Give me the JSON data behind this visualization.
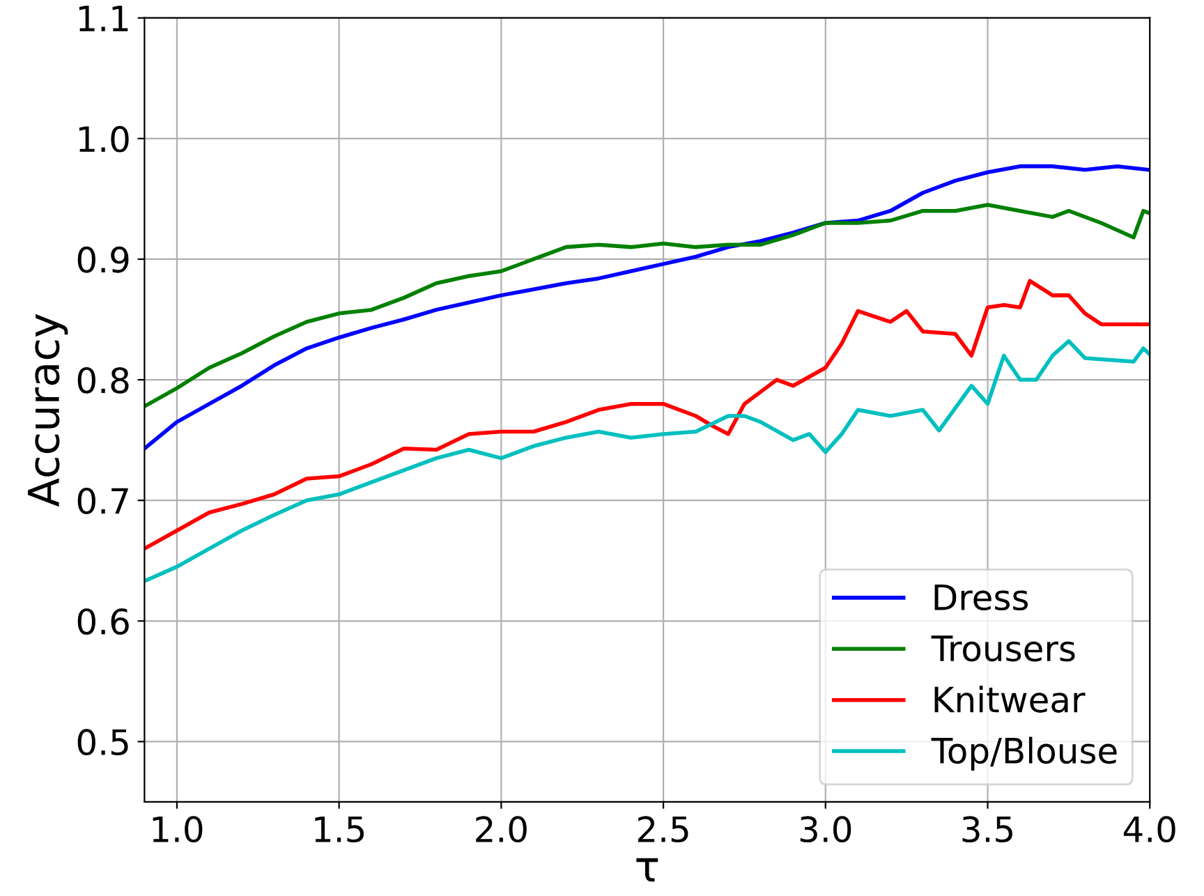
{
  "chart_data": {
    "type": "line",
    "xlabel": "τ",
    "ylabel": "Accuracy",
    "xlim": [
      0.9,
      4.0
    ],
    "ylim": [
      0.45,
      1.1
    ],
    "xticks": [
      {
        "value": 1.0,
        "label": "1.0"
      },
      {
        "value": 1.5,
        "label": "1.5"
      },
      {
        "value": 2.0,
        "label": "2.0"
      },
      {
        "value": 2.5,
        "label": "2.5"
      },
      {
        "value": 3.0,
        "label": "3.0"
      },
      {
        "value": 3.5,
        "label": "3.5"
      },
      {
        "value": 4.0,
        "label": "4.0"
      }
    ],
    "yticks": [
      0.5,
      0.6,
      0.7,
      0.8,
      0.9,
      {
        "value": 1.0,
        "label": "1.0"
      },
      1.1
    ],
    "grid": true,
    "legend": "bottom right",
    "marker": "none",
    "line_style": "solid",
    "series": [
      {
        "name": "Dress",
        "color": "#0000ff",
        "x": [
          0.9,
          1.0,
          1.1,
          1.2,
          1.3,
          1.4,
          1.5,
          1.6,
          1.7,
          1.8,
          1.9,
          2.0,
          2.1,
          2.2,
          2.3,
          2.4,
          2.5,
          2.6,
          2.7,
          2.8,
          2.9,
          3.0,
          3.1,
          3.2,
          3.3,
          3.4,
          3.5,
          3.6,
          3.7,
          3.8,
          3.9,
          4.0
        ],
        "values": [
          0.743,
          0.765,
          0.78,
          0.795,
          0.812,
          0.826,
          0.835,
          0.843,
          0.85,
          0.858,
          0.864,
          0.87,
          0.875,
          0.88,
          0.884,
          0.89,
          0.896,
          0.902,
          0.91,
          0.915,
          0.922,
          0.93,
          0.932,
          0.94,
          0.955,
          0.965,
          0.972,
          0.977,
          0.977,
          0.974,
          0.977,
          0.974
        ]
      },
      {
        "name": "Trousers",
        "color": "#008000",
        "x": [
          0.9,
          1.0,
          1.1,
          1.2,
          1.3,
          1.4,
          1.5,
          1.6,
          1.7,
          1.8,
          1.9,
          2.0,
          2.1,
          2.2,
          2.3,
          2.4,
          2.5,
          2.6,
          2.7,
          2.8,
          2.9,
          3.0,
          3.1,
          3.2,
          3.3,
          3.4,
          3.5,
          3.6,
          3.7,
          3.75,
          3.85,
          3.95,
          3.98,
          4.0
        ],
        "values": [
          0.778,
          0.793,
          0.81,
          0.822,
          0.836,
          0.848,
          0.855,
          0.858,
          0.868,
          0.88,
          0.886,
          0.89,
          0.9,
          0.91,
          0.912,
          0.91,
          0.913,
          0.91,
          0.912,
          0.912,
          0.92,
          0.93,
          0.93,
          0.932,
          0.94,
          0.94,
          0.945,
          0.94,
          0.935,
          0.94,
          0.93,
          0.918,
          0.94,
          0.938
        ]
      },
      {
        "name": "Knitwear",
        "color": "#ff0000",
        "x": [
          0.9,
          1.0,
          1.1,
          1.2,
          1.3,
          1.4,
          1.5,
          1.6,
          1.7,
          1.8,
          1.9,
          2.0,
          2.1,
          2.2,
          2.3,
          2.4,
          2.5,
          2.6,
          2.65,
          2.7,
          2.75,
          2.8,
          2.85,
          2.9,
          3.0,
          3.05,
          3.1,
          3.2,
          3.25,
          3.3,
          3.4,
          3.45,
          3.5,
          3.55,
          3.6,
          3.63,
          3.7,
          3.75,
          3.8,
          3.85,
          4.0
        ],
        "values": [
          0.66,
          0.675,
          0.69,
          0.697,
          0.705,
          0.718,
          0.72,
          0.73,
          0.743,
          0.742,
          0.755,
          0.757,
          0.757,
          0.765,
          0.775,
          0.78,
          0.78,
          0.77,
          0.762,
          0.755,
          0.78,
          0.79,
          0.8,
          0.795,
          0.81,
          0.83,
          0.857,
          0.848,
          0.857,
          0.84,
          0.838,
          0.82,
          0.86,
          0.862,
          0.86,
          0.882,
          0.87,
          0.87,
          0.855,
          0.846,
          0.846
        ]
      },
      {
        "name": "Top/Blouse",
        "color": "#00bfbf",
        "x": [
          0.9,
          1.0,
          1.1,
          1.2,
          1.3,
          1.4,
          1.5,
          1.6,
          1.7,
          1.8,
          1.9,
          2.0,
          2.1,
          2.2,
          2.3,
          2.4,
          2.5,
          2.6,
          2.7,
          2.75,
          2.8,
          2.9,
          2.95,
          3.0,
          3.05,
          3.1,
          3.2,
          3.3,
          3.35,
          3.45,
          3.5,
          3.55,
          3.6,
          3.65,
          3.7,
          3.75,
          3.8,
          3.95,
          3.98,
          4.0
        ],
        "values": [
          0.633,
          0.645,
          0.66,
          0.675,
          0.688,
          0.7,
          0.705,
          0.715,
          0.725,
          0.735,
          0.742,
          0.735,
          0.745,
          0.752,
          0.757,
          0.752,
          0.755,
          0.757,
          0.77,
          0.77,
          0.765,
          0.75,
          0.755,
          0.74,
          0.755,
          0.775,
          0.77,
          0.775,
          0.758,
          0.795,
          0.78,
          0.82,
          0.8,
          0.8,
          0.82,
          0.832,
          0.818,
          0.815,
          0.826,
          0.821
        ]
      }
    ]
  }
}
